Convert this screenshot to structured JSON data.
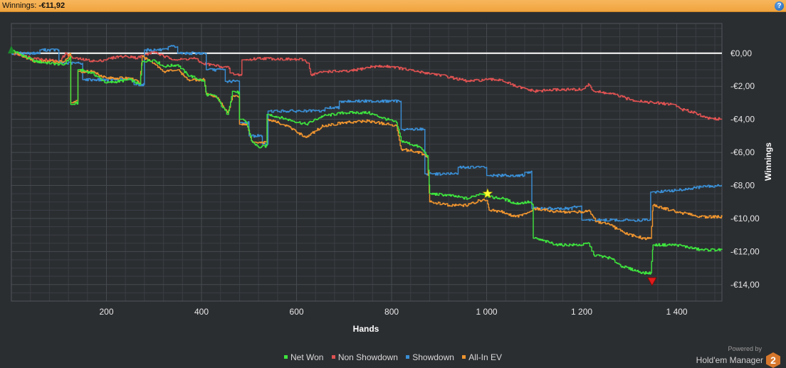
{
  "header": {
    "label": "Winnings:",
    "value": "-€11,92",
    "help_label": "?"
  },
  "footer": {
    "powered_by": "Powered by",
    "product": "Hold'em Manager",
    "badge": "2"
  },
  "colors": {
    "net_won": "#3ee53e",
    "non_showdown": "#e05252",
    "showdown": "#3a8fd6",
    "allin_ev": "#f0952f",
    "zero_line": "#ffffff",
    "background": "#2b2e31",
    "grid": "#454b50"
  },
  "chart_data": {
    "type": "line",
    "xlabel": "Hands",
    "ylabel": "Winnings",
    "xlim": [
      0,
      1495
    ],
    "ylim": [
      -15,
      1.8
    ],
    "x_ticks": [
      200,
      400,
      600,
      800,
      1000,
      1200,
      1400
    ],
    "x_tick_labels": [
      "200",
      "400",
      "600",
      "800",
      "1 000",
      "1 200",
      "1 400"
    ],
    "y_ticks": [
      0,
      -2,
      -4,
      -6,
      -8,
      -10,
      -12,
      -14
    ],
    "y_tick_labels": [
      "€0,00",
      "-€2,00",
      "-€4,00",
      "-€6,00",
      "-€8,00",
      "-€10,00",
      "-€12,00",
      "-€14,00"
    ],
    "grid": true,
    "legend_position": "bottom",
    "series": [
      {
        "name": "Net Won",
        "color": "#3ee53e",
        "points": [
          [
            0,
            0.2
          ],
          [
            50,
            -0.5
          ],
          [
            110,
            -0.7
          ],
          [
            125,
            -0.2
          ],
          [
            128,
            -3.1
          ],
          [
            140,
            -3
          ],
          [
            143,
            -1
          ],
          [
            170,
            -1.2
          ],
          [
            200,
            -1.8
          ],
          [
            250,
            -1.6
          ],
          [
            270,
            -1.9
          ],
          [
            275,
            -0.5
          ],
          [
            300,
            -0.4
          ],
          [
            320,
            -0.8
          ],
          [
            350,
            -0.7
          ],
          [
            370,
            -1.3
          ],
          [
            405,
            -1.7
          ],
          [
            410,
            -2.5
          ],
          [
            430,
            -2.6
          ],
          [
            445,
            -3.3
          ],
          [
            455,
            -3.7
          ],
          [
            465,
            -2.3
          ],
          [
            480,
            -2.4
          ],
          [
            483,
            -4
          ],
          [
            495,
            -4.2
          ],
          [
            505,
            -5.3
          ],
          [
            520,
            -5.7
          ],
          [
            538,
            -5.6
          ],
          [
            540,
            -3.7
          ],
          [
            580,
            -4
          ],
          [
            620,
            -4.3
          ],
          [
            655,
            -3.8
          ],
          [
            700,
            -3.6
          ],
          [
            750,
            -3.6
          ],
          [
            810,
            -4.2
          ],
          [
            820,
            -5.3
          ],
          [
            860,
            -5.7
          ],
          [
            875,
            -6.2
          ],
          [
            880,
            -8.5
          ],
          [
            920,
            -8.6
          ],
          [
            960,
            -8.8
          ],
          [
            985,
            -8.5
          ],
          [
            1000,
            -8.5
          ],
          [
            1005,
            -8.7
          ],
          [
            1035,
            -8.8
          ],
          [
            1060,
            -9.1
          ],
          [
            1090,
            -9
          ],
          [
            1098,
            -9.2
          ],
          [
            1100,
            -11.2
          ],
          [
            1150,
            -11.6
          ],
          [
            1200,
            -11.6
          ],
          [
            1215,
            -11.5
          ],
          [
            1225,
            -12.2
          ],
          [
            1260,
            -12.4
          ],
          [
            1285,
            -12.9
          ],
          [
            1330,
            -13.3
          ],
          [
            1345,
            -13.3
          ],
          [
            1350,
            -11.6
          ],
          [
            1400,
            -11.6
          ],
          [
            1450,
            -11.9
          ],
          [
            1495,
            -11.9
          ]
        ]
      },
      {
        "name": "Non Showdown",
        "color": "#e05252",
        "points": [
          [
            0,
            0
          ],
          [
            50,
            -0.3
          ],
          [
            100,
            -0.5
          ],
          [
            115,
            0
          ],
          [
            130,
            -0.3
          ],
          [
            180,
            -0.5
          ],
          [
            225,
            -0.2
          ],
          [
            255,
            -0.2
          ],
          [
            262,
            -0.3
          ],
          [
            300,
            0.1
          ],
          [
            320,
            -0.2
          ],
          [
            350,
            -0.4
          ],
          [
            385,
            -0.3
          ],
          [
            400,
            -0.6
          ],
          [
            440,
            -0.8
          ],
          [
            460,
            -0.9
          ],
          [
            462,
            -1.2
          ],
          [
            470,
            -1.3
          ],
          [
            485,
            -1.3
          ],
          [
            487,
            -0.4
          ],
          [
            500,
            -0.4
          ],
          [
            520,
            -0.3
          ],
          [
            615,
            -0.4
          ],
          [
            625,
            -0.6
          ],
          [
            630,
            -1.3
          ],
          [
            660,
            -1.1
          ],
          [
            710,
            -1.1
          ],
          [
            760,
            -0.8
          ],
          [
            800,
            -0.8
          ],
          [
            850,
            -1.1
          ],
          [
            900,
            -1.3
          ],
          [
            960,
            -1.7
          ],
          [
            1000,
            -1.6
          ],
          [
            1030,
            -1.6
          ],
          [
            1060,
            -2
          ],
          [
            1100,
            -2.3
          ],
          [
            1150,
            -2.2
          ],
          [
            1200,
            -2.2
          ],
          [
            1215,
            -1.9
          ],
          [
            1225,
            -2.3
          ],
          [
            1270,
            -2.5
          ],
          [
            1300,
            -2.8
          ],
          [
            1350,
            -3
          ],
          [
            1395,
            -3.1
          ],
          [
            1410,
            -3.4
          ],
          [
            1440,
            -3.6
          ],
          [
            1460,
            -3.9
          ],
          [
            1495,
            -4
          ]
        ]
      },
      {
        "name": "Showdown",
        "color": "#3a8fd6",
        "points": [
          [
            0,
            0
          ],
          [
            60,
            0
          ],
          [
            62,
            0.2
          ],
          [
            100,
            0.2
          ],
          [
            102,
            -0.6
          ],
          [
            150,
            -0.6
          ],
          [
            152,
            -1.6
          ],
          [
            200,
            -1.6
          ],
          [
            258,
            -1.6
          ],
          [
            260,
            -1.9
          ],
          [
            280,
            -1.9
          ],
          [
            282,
            0.2
          ],
          [
            330,
            0.2
          ],
          [
            332,
            0.4
          ],
          [
            350,
            0.4
          ],
          [
            352,
            0
          ],
          [
            410,
            0
          ],
          [
            412,
            -1
          ],
          [
            450,
            -1
          ],
          [
            452,
            -1.7
          ],
          [
            480,
            -1.7
          ],
          [
            482,
            -4.2
          ],
          [
            500,
            -4.2
          ],
          [
            502,
            -5
          ],
          [
            528,
            -5
          ],
          [
            530,
            -5.5
          ],
          [
            540,
            -5.5
          ],
          [
            542,
            -3.5
          ],
          [
            660,
            -3.5
          ],
          [
            662,
            -3.3
          ],
          [
            690,
            -3.3
          ],
          [
            692,
            -2.9
          ],
          [
            820,
            -2.9
          ],
          [
            822,
            -4.6
          ],
          [
            870,
            -4.6
          ],
          [
            872,
            -7.3
          ],
          [
            940,
            -7.3
          ],
          [
            942,
            -6.9
          ],
          [
            1000,
            -6.9
          ],
          [
            1002,
            -7.4
          ],
          [
            1080,
            -7.4
          ],
          [
            1082,
            -7.2
          ],
          [
            1095,
            -7.2
          ],
          [
            1097,
            -9.4
          ],
          [
            1180,
            -9.4
          ],
          [
            1182,
            -9.3
          ],
          [
            1200,
            -9.3
          ],
          [
            1202,
            -10.1
          ],
          [
            1345,
            -10.1
          ],
          [
            1347,
            -8.4
          ],
          [
            1400,
            -8.3
          ],
          [
            1450,
            -8.1
          ],
          [
            1495,
            -8
          ]
        ]
      },
      {
        "name": "All-In EV",
        "color": "#f0952f",
        "points": [
          [
            0,
            0.1
          ],
          [
            50,
            -0.5
          ],
          [
            110,
            -0.5
          ],
          [
            125,
            0
          ],
          [
            128,
            -3
          ],
          [
            140,
            -2.9
          ],
          [
            143,
            -1.1
          ],
          [
            170,
            -1.1
          ],
          [
            200,
            -1.5
          ],
          [
            250,
            -1.5
          ],
          [
            270,
            -1.8
          ],
          [
            275,
            -0.2
          ],
          [
            300,
            -0.6
          ],
          [
            320,
            -1.1
          ],
          [
            350,
            -1
          ],
          [
            370,
            -1.6
          ],
          [
            405,
            -1.6
          ],
          [
            410,
            -2.5
          ],
          [
            430,
            -2.6
          ],
          [
            445,
            -3.2
          ],
          [
            455,
            -3.6
          ],
          [
            465,
            -2.6
          ],
          [
            480,
            -2.6
          ],
          [
            483,
            -4.3
          ],
          [
            495,
            -4.3
          ],
          [
            505,
            -5.3
          ],
          [
            520,
            -5.4
          ],
          [
            538,
            -5.4
          ],
          [
            540,
            -4
          ],
          [
            580,
            -4.4
          ],
          [
            620,
            -5.1
          ],
          [
            655,
            -4.4
          ],
          [
            700,
            -4.2
          ],
          [
            750,
            -4.1
          ],
          [
            810,
            -4.4
          ],
          [
            820,
            -5.8
          ],
          [
            860,
            -6
          ],
          [
            875,
            -6.3
          ],
          [
            880,
            -9
          ],
          [
            920,
            -9.2
          ],
          [
            960,
            -9.2
          ],
          [
            985,
            -8.9
          ],
          [
            1000,
            -8.9
          ],
          [
            1005,
            -9.5
          ],
          [
            1035,
            -9.6
          ],
          [
            1060,
            -9.9
          ],
          [
            1090,
            -9.6
          ],
          [
            1100,
            -9.4
          ],
          [
            1150,
            -9.6
          ],
          [
            1200,
            -9.6
          ],
          [
            1215,
            -9.5
          ],
          [
            1230,
            -10.2
          ],
          [
            1260,
            -10.4
          ],
          [
            1290,
            -10.9
          ],
          [
            1330,
            -11.2
          ],
          [
            1345,
            -11.2
          ],
          [
            1350,
            -9.2
          ],
          [
            1400,
            -9.6
          ],
          [
            1450,
            -9.9
          ],
          [
            1495,
            -9.9
          ]
        ]
      }
    ],
    "markers": [
      {
        "name": "start",
        "shape": "triangle-up",
        "color": "#1c8a2c",
        "x": 0,
        "y": 0.2
      },
      {
        "name": "peak",
        "shape": "star",
        "color": "#ffff33",
        "x": 1002,
        "y": -8.5
      },
      {
        "name": "low",
        "shape": "triangle-down",
        "color": "#e01c1c",
        "x": 1348,
        "y": -13.8
      }
    ]
  }
}
